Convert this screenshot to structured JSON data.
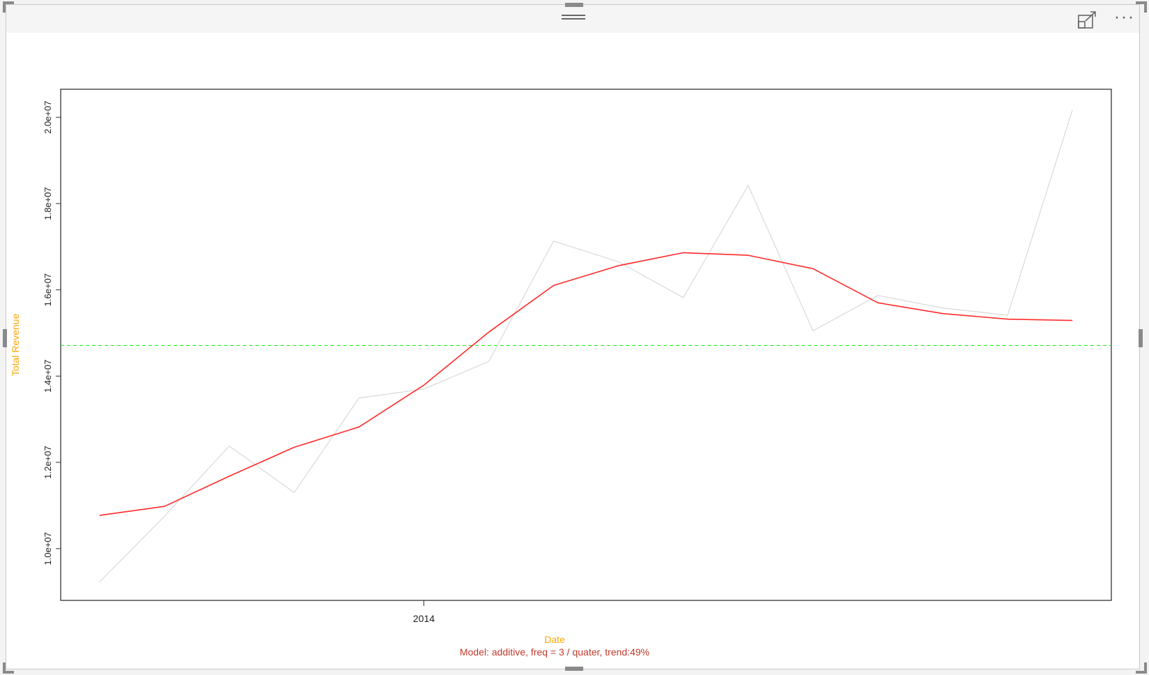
{
  "header": {
    "more_label": "···"
  },
  "chart_data": {
    "type": "line",
    "xlabel": "Date",
    "ylabel": "Total Revenue",
    "subtitle": "Model: additive, freq = 3 / quater, trend:49%",
    "x_ticks": [
      {
        "label": "2014",
        "index": 5
      }
    ],
    "y_ticks": [
      {
        "value": 10000000,
        "label": "1.0e+07"
      },
      {
        "value": 12000000,
        "label": "1.2e+07"
      },
      {
        "value": 14000000,
        "label": "1.4e+07"
      },
      {
        "value": 16000000,
        "label": "1.6e+07"
      },
      {
        "value": 18000000,
        "label": "1.8e+07"
      },
      {
        "value": 20000000,
        "label": "2.0e+07"
      }
    ],
    "ylim": [
      8800000,
      20650000
    ],
    "xlim": [
      -0.6,
      15.6
    ],
    "series": [
      {
        "role": "observed",
        "color": "#d9d9d9",
        "values": [
          9230000,
          10750000,
          12380000,
          11300000,
          13490000,
          13700000,
          14340000,
          17130000,
          16650000,
          15820000,
          18420000,
          15050000,
          15870000,
          15580000,
          15410000,
          20170000
        ]
      },
      {
        "role": "trend",
        "color": "#ff2a2a",
        "values": [
          10770000,
          10980000,
          11680000,
          12350000,
          12820000,
          13790000,
          15020000,
          16100000,
          16560000,
          16860000,
          16800000,
          16490000,
          15700000,
          15450000,
          15320000,
          15290000
        ]
      }
    ],
    "reference_line": {
      "value": 14710000,
      "color": "#22ee22",
      "style": "dashed"
    },
    "colors": {
      "axis_label": "#ffa500",
      "subtitle": "#c0392b",
      "frame": "#333333"
    }
  }
}
